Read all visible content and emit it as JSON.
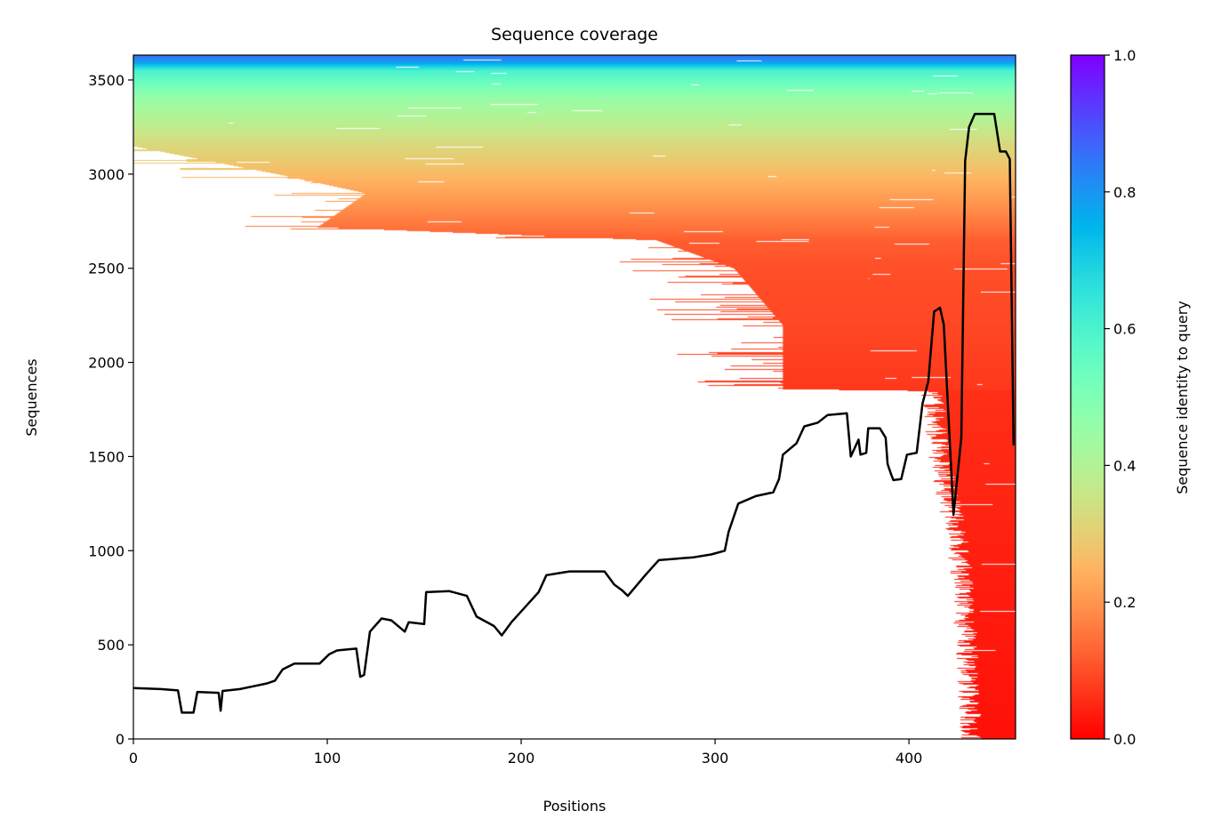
{
  "chart_data": {
    "type": "heatmap",
    "title": "Sequence coverage",
    "xlabel": "Positions",
    "ylabel": "Sequences",
    "xlim": [
      0,
      455
    ],
    "ylim": [
      0,
      3632
    ],
    "xticks": [
      0,
      100,
      200,
      300,
      400
    ],
    "yticks": [
      0,
      500,
      1000,
      1500,
      2000,
      2500,
      3000,
      3500
    ],
    "grid": false,
    "colormap": "rainbow_r",
    "colorbar": {
      "label": "Sequence identity to query",
      "range": [
        0.0,
        1.0
      ],
      "ticks": [
        "0.0",
        "0.2",
        "0.4",
        "0.6",
        "0.8",
        "1.0"
      ]
    },
    "coverage_rows": {
      "columns": [
        "sequence_index",
        "first_covered_position",
        "last_covered_position",
        "identity"
      ],
      "rows": [
        [
          0,
          430,
          455,
          0.02
        ],
        [
          500,
          428,
          455,
          0.03
        ],
        [
          1000,
          424,
          455,
          0.04
        ],
        [
          1500,
          414,
          455,
          0.05
        ],
        [
          1850,
          410,
          455,
          0.06
        ],
        [
          1860,
          335,
          455,
          0.07
        ],
        [
          2200,
          335,
          455,
          0.09
        ],
        [
          2500,
          310,
          455,
          0.1
        ],
        [
          2650,
          270,
          455,
          0.12
        ],
        [
          2720,
          95,
          455,
          0.15
        ],
        [
          2900,
          120,
          455,
          0.22
        ],
        [
          3000,
          75,
          455,
          0.26
        ],
        [
          3150,
          0,
          455,
          0.32
        ],
        [
          3400,
          0,
          455,
          0.45
        ],
        [
          3550,
          0,
          455,
          0.6
        ],
        [
          3600,
          0,
          455,
          0.8
        ],
        [
          3632,
          0,
          455,
          0.85
        ]
      ]
    },
    "line": {
      "color": "#000000",
      "x": [
        0,
        14,
        23,
        25,
        31,
        33,
        44,
        45,
        46,
        55,
        62,
        69,
        73,
        77,
        83,
        96,
        101,
        105,
        115,
        117,
        119,
        122,
        128,
        133,
        140,
        142,
        150,
        151,
        163,
        172,
        177,
        186,
        190,
        195,
        202,
        209,
        213,
        225,
        243,
        248,
        252,
        255,
        264,
        271,
        289,
        298,
        305,
        307,
        312,
        321,
        330,
        333,
        335,
        342,
        346,
        353,
        358,
        368,
        370,
        374,
        375,
        378,
        379,
        385,
        388,
        389,
        391,
        392,
        396,
        399,
        404,
        407,
        410,
        413,
        416,
        418,
        423,
        427,
        429,
        431,
        434,
        444,
        447,
        450,
        452,
        454
      ],
      "y": [
        270,
        265,
        258,
        140,
        140,
        250,
        245,
        150,
        255,
        265,
        280,
        295,
        310,
        370,
        400,
        400,
        450,
        470,
        480,
        330,
        340,
        570,
        640,
        630,
        570,
        620,
        610,
        780,
        785,
        760,
        650,
        600,
        550,
        620,
        700,
        780,
        870,
        890,
        890,
        820,
        790,
        760,
        870,
        950,
        965,
        980,
        1000,
        1100,
        1250,
        1290,
        1310,
        1380,
        1510,
        1570,
        1660,
        1680,
        1720,
        1730,
        1500,
        1590,
        1510,
        1520,
        1650,
        1650,
        1600,
        1460,
        1400,
        1375,
        1380,
        1510,
        1520,
        1780,
        1900,
        2270,
        2290,
        2200,
        1190,
        1600,
        3070,
        3250,
        3320,
        3320,
        3120,
        3120,
        3080,
        1560
      ]
    }
  }
}
